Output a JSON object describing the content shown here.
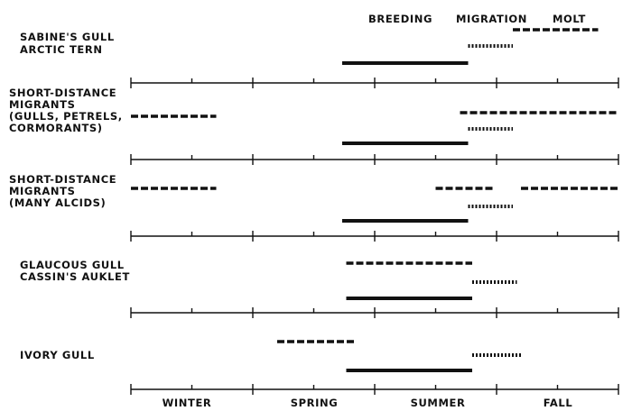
{
  "header": {
    "breeding": "BREEDING",
    "migration": "MIGRATION",
    "molt": "MOLT"
  },
  "legend": {
    "solid": "breeding",
    "dotted": "migration",
    "dashed": "molt"
  },
  "seasons": [
    "WINTER",
    "SPRING",
    "SUMMER",
    "FALL"
  ],
  "timeline": {
    "start": 0,
    "end": 12,
    "unit": "month",
    "season_boundaries": [
      0,
      3,
      6,
      9,
      12
    ],
    "midseason_ticks": [
      1.5,
      4.5,
      7.5,
      10.5
    ]
  },
  "groups": [
    {
      "labels": [
        "SABINE'S GULL",
        "ARCTIC TERN"
      ],
      "breeding": [
        [
          5.2,
          8.3
        ]
      ],
      "migration": [
        [
          8.3,
          9.4
        ]
      ],
      "molt": [
        [
          9.4,
          11.5
        ]
      ]
    },
    {
      "labels": [
        "SHORT-DISTANCE",
        "MIGRANTS",
        "(GULLS, PETRELS,",
        "CORMORANTS)"
      ],
      "breeding": [
        [
          5.2,
          8.3
        ]
      ],
      "migration": [
        [
          8.3,
          9.4
        ]
      ],
      "molt": [
        [
          0,
          2.1
        ],
        [
          8.1,
          12
        ]
      ]
    },
    {
      "labels": [
        "SHORT-DISTANCE",
        "MIGRANTS",
        "(MANY ALCIDS)"
      ],
      "breeding": [
        [
          5.2,
          8.3
        ]
      ],
      "migration": [
        [
          8.3,
          9.4
        ]
      ],
      "molt": [
        [
          0,
          2.1
        ],
        [
          7.5,
          8.9
        ],
        [
          9.6,
          12
        ]
      ]
    },
    {
      "labels": [
        "GLAUCOUS GULL",
        "CASSIN'S AUKLET"
      ],
      "breeding": [
        [
          5.3,
          8.4
        ]
      ],
      "migration": [
        [
          8.4,
          9.5
        ]
      ],
      "molt": [
        [
          5.3,
          8.4
        ]
      ]
    },
    {
      "labels": [
        "IVORY GULL"
      ],
      "breeding": [
        [
          5.3,
          8.4
        ]
      ],
      "migration": [
        [
          8.4,
          9.6
        ]
      ],
      "molt": [
        [
          3.6,
          5.5
        ]
      ]
    }
  ]
}
